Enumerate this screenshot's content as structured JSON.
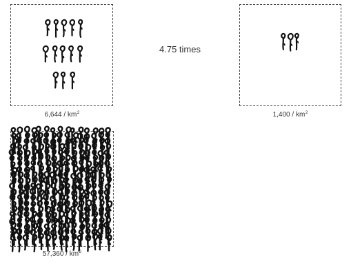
{
  "panels": [
    {
      "figures": 14,
      "density_value": "6,644",
      "unit": "km",
      "superscript": "2"
    },
    {
      "figures": 3,
      "density_value": "1,400",
      "unit": "km",
      "superscript": "2"
    },
    {
      "figures": 300,
      "density_value": "57,360",
      "unit": "km",
      "superscript": "2"
    }
  ],
  "ratio_label": "4.75 times",
  "separator": " / ",
  "colors": {
    "ink": "#111111",
    "border": "#444444",
    "text": "#333333"
  },
  "icon": "stick-figure-icon"
}
